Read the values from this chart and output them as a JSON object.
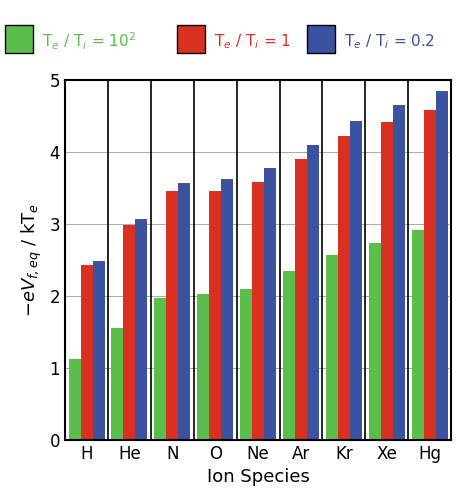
{
  "categories": [
    "H",
    "He",
    "N",
    "O",
    "Ne",
    "Ar",
    "Kr",
    "Xe",
    "Hg"
  ],
  "series": {
    "green": [
      1.13,
      1.55,
      1.97,
      2.03,
      2.1,
      2.35,
      2.57,
      2.73,
      2.92
    ],
    "red": [
      2.43,
      2.98,
      3.46,
      3.46,
      3.58,
      3.9,
      4.22,
      4.42,
      4.58
    ],
    "blue": [
      2.48,
      3.07,
      3.57,
      3.63,
      3.78,
      4.1,
      4.43,
      4.65,
      4.85
    ]
  },
  "colors": {
    "green": "#5abf4a",
    "red": "#d93020",
    "blue": "#3a52a0"
  },
  "legend_labels": {
    "green": "T_e / T_i = 10^2",
    "red": "T_e / T_i = 1",
    "blue": "T_e / T_i = 0.2"
  },
  "ylabel": "$-eV_{f,eq}$ / kT$_e$",
  "xlabel": "Ion Species",
  "ylim": [
    0,
    5
  ],
  "yticks": [
    0,
    1,
    2,
    3,
    4,
    5
  ],
  "bar_width": 0.28,
  "grid_color": "#aaaaaa",
  "spine_color": "#000000",
  "axis_fontsize": 13,
  "tick_fontsize": 12,
  "legend_fontsize": 11
}
